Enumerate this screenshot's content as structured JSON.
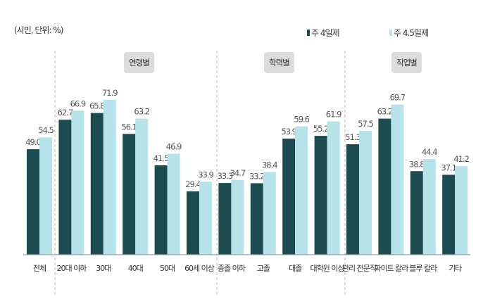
{
  "chart_data": {
    "type": "bar",
    "unit_note": "(시민, 단위: %)",
    "categories": [
      "전체",
      "20대 이하",
      "30대",
      "40대",
      "50대",
      "60세 이상",
      "중졸 이하",
      "고졸",
      "대졸",
      "대학원 이상",
      "관리 전문직",
      "화이트 칼라",
      "블루 칼라",
      "기타"
    ],
    "groups": [
      {
        "label": "연령별",
        "from": 1,
        "to": 5
      },
      {
        "label": "학력별",
        "from": 6,
        "to": 9
      },
      {
        "label": "직업별",
        "from": 10,
        "to": 13
      }
    ],
    "series": [
      {
        "name": "주 4일제",
        "color": "#1c4b50",
        "values": [
          49.0,
          62.7,
          65.8,
          56.1,
          41.5,
          29.4,
          33.3,
          33.2,
          53.9,
          55.2,
          51.3,
          63.2,
          38.8,
          37.1
        ]
      },
      {
        "name": "주 4.5일제",
        "color": "#b6e2ea",
        "values": [
          54.5,
          66.9,
          71.9,
          63.2,
          46.9,
          33.9,
          34.7,
          38.4,
          59.6,
          61.9,
          57.5,
          69.7,
          44.4,
          41.2
        ]
      }
    ],
    "ylim": [
      0,
      80
    ],
    "grid": false,
    "legend": "top-right"
  }
}
